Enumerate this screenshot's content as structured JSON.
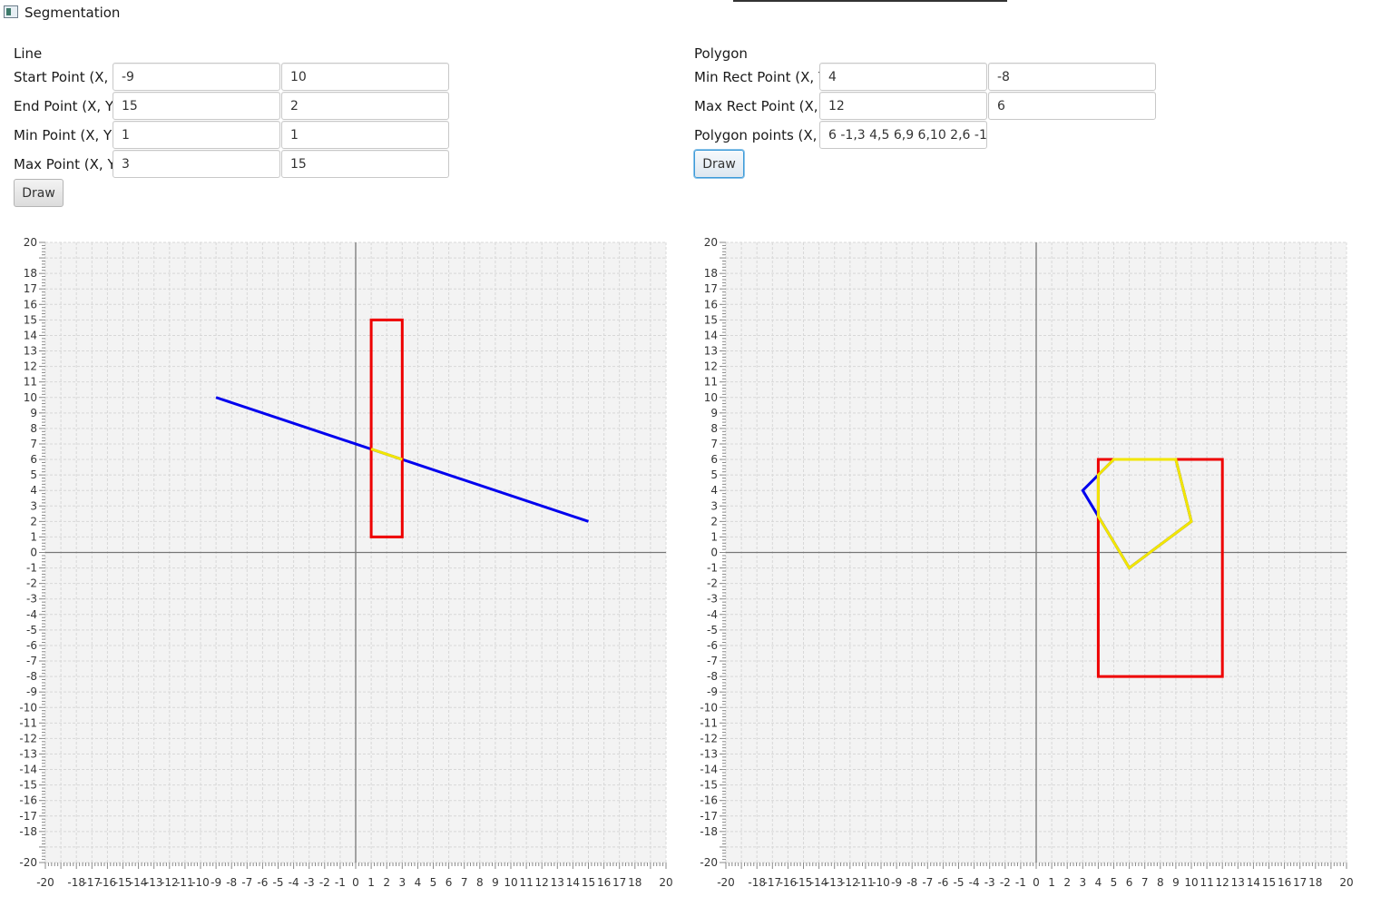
{
  "window": {
    "title": "Segmentation"
  },
  "line_panel": {
    "title": "Line",
    "start_label": "Start Point (X, Y)",
    "start_x": "-9",
    "start_y": "10",
    "end_label": "End Point (X, Y)",
    "end_x": "15",
    "end_y": "2",
    "min_label": "Min Point (X, Y)",
    "min_x": "1",
    "min_y": "1",
    "max_label": "Max Point (X, Y)",
    "max_x": "3",
    "max_y": "15",
    "draw_label": "Draw"
  },
  "polygon_panel": {
    "title": "Polygon",
    "min_rect_label": "Min Rect Point (X, Y)",
    "min_rect_x": "4",
    "min_rect_y": "-8",
    "max_rect_label": "Max Rect Point (X, Y)",
    "max_rect_x": "12",
    "max_rect_y": "6",
    "points_label": "Polygon points (X, Y)",
    "points_value": "6 -1,3 4,5 6,9 6,10 2,6 -1",
    "draw_label": "Draw"
  },
  "colors": {
    "segment": "#0000ee",
    "clip_rect": "#ee0000",
    "clipped": "#f2e600",
    "axis": "#777777",
    "grid": "#d8d8d8",
    "plot_bg": "#f3f3f3"
  },
  "chart_data": [
    {
      "type": "line",
      "name": "line-clipping",
      "xlim": [
        -20,
        20
      ],
      "ylim": [
        -20,
        20
      ],
      "grid": true,
      "x_tick_labels": [
        "-20",
        "-18",
        "-17",
        "-16",
        "-15",
        "-14",
        "-13",
        "-12",
        "-11",
        "-10",
        "-9",
        "-8",
        "-7",
        "-6",
        "-5",
        "-4",
        "-3",
        "-2",
        "-1",
        "0",
        "1",
        "2",
        "3",
        "4",
        "5",
        "6",
        "7",
        "8",
        "9",
        "10",
        "11",
        "12",
        "13",
        "14",
        "15",
        "16",
        "17",
        "18",
        "20"
      ],
      "y_tick_labels": [
        "-20",
        "-18",
        "-17",
        "-16",
        "-15",
        "-14",
        "-13",
        "-12",
        "-11",
        "-10",
        "-9",
        "-8",
        "-7",
        "-6",
        "-5",
        "-4",
        "-3",
        "-2",
        "-1",
        "0",
        "1",
        "2",
        "3",
        "4",
        "5",
        "6",
        "7",
        "8",
        "9",
        "10",
        "11",
        "12",
        "13",
        "14",
        "15",
        "16",
        "17",
        "18",
        "20"
      ],
      "series": [
        {
          "role": "segment",
          "color": "#0000ee",
          "points": [
            [
              -9,
              10
            ],
            [
              15,
              2
            ]
          ]
        },
        {
          "role": "clip-rect",
          "color": "#ee0000",
          "closed": true,
          "points": [
            [
              1,
              1
            ],
            [
              3,
              1
            ],
            [
              3,
              15
            ],
            [
              1,
              15
            ]
          ]
        },
        {
          "role": "clipped",
          "color": "#f2e600",
          "points": [
            [
              1,
              6.67
            ],
            [
              3,
              6
            ]
          ]
        }
      ]
    },
    {
      "type": "line",
      "name": "polygon-clipping",
      "xlim": [
        -20,
        20
      ],
      "ylim": [
        -20,
        20
      ],
      "grid": true,
      "x_tick_labels": [
        "-20",
        "-18",
        "-17",
        "-16",
        "-15",
        "-14",
        "-13",
        "-12",
        "-11",
        "-10",
        "-9",
        "-8",
        "-7",
        "-6",
        "-5",
        "-4",
        "-3",
        "-2",
        "-1",
        "0",
        "1",
        "2",
        "3",
        "4",
        "5",
        "6",
        "7",
        "8",
        "9",
        "10",
        "11",
        "12",
        "13",
        "14",
        "15",
        "16",
        "17",
        "18",
        "20"
      ],
      "y_tick_labels": [
        "-20",
        "-18",
        "-17",
        "-16",
        "-15",
        "-14",
        "-13",
        "-12",
        "-11",
        "-10",
        "-9",
        "-8",
        "-7",
        "-6",
        "-5",
        "-4",
        "-3",
        "-2",
        "-1",
        "0",
        "1",
        "2",
        "3",
        "4",
        "5",
        "6",
        "7",
        "8",
        "9",
        "10",
        "11",
        "12",
        "13",
        "14",
        "15",
        "16",
        "17",
        "18",
        "20"
      ],
      "series": [
        {
          "role": "segment",
          "color": "#0000ee",
          "closed": true,
          "points": [
            [
              6,
              -1
            ],
            [
              3,
              4
            ],
            [
              5,
              6
            ],
            [
              9,
              6
            ],
            [
              10,
              2
            ],
            [
              6,
              -1
            ]
          ]
        },
        {
          "role": "clip-rect",
          "color": "#ee0000",
          "closed": true,
          "points": [
            [
              4,
              -8
            ],
            [
              12,
              -8
            ],
            [
              12,
              6
            ],
            [
              4,
              6
            ]
          ]
        },
        {
          "role": "clipped",
          "color": "#f2e600",
          "closed": true,
          "points": [
            [
              6,
              -1
            ],
            [
              4,
              2.33
            ],
            [
              4,
              5
            ],
            [
              5,
              6
            ],
            [
              9,
              6
            ],
            [
              10,
              2
            ],
            [
              6,
              -1
            ]
          ]
        }
      ]
    }
  ]
}
